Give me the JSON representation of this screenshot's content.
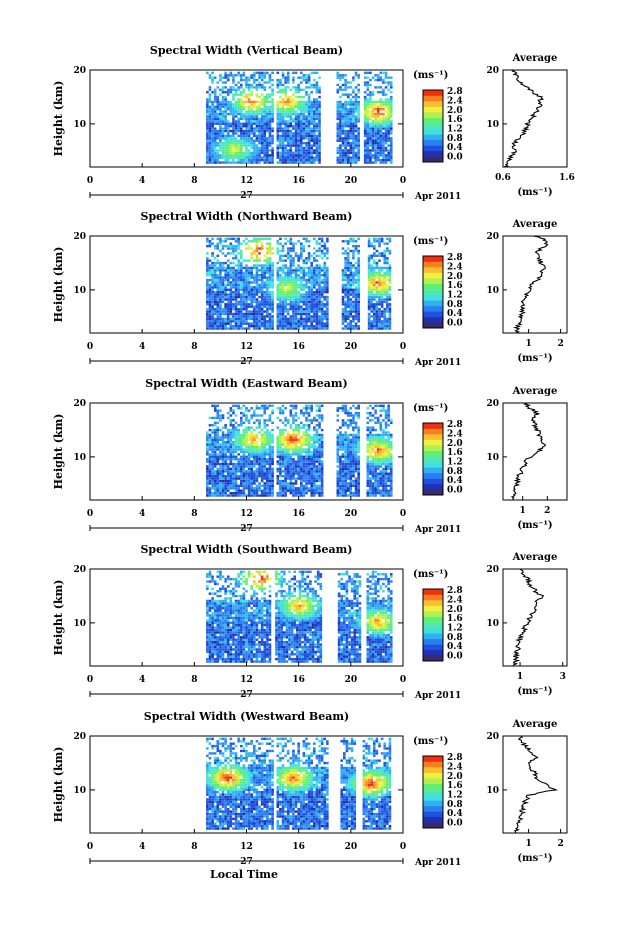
{
  "figure": {
    "shared_xlabel": "Local Time",
    "date_label": "Apr 2011",
    "day_label": "27"
  },
  "colorbar": {
    "unit": "(ms⁻¹)",
    "tick_labels": [
      "0.0",
      "0.4",
      "0.8",
      "1.2",
      "1.6",
      "2.0",
      "2.4",
      "2.8"
    ],
    "colors": [
      "#3a2a6a",
      "#2030b0",
      "#2050e0",
      "#2a7ff0",
      "#30b0f0",
      "#40e0e0",
      "#50e8b0",
      "#60f070",
      "#b0f050",
      "#f0f040",
      "#f8c030",
      "#f88020",
      "#f03010"
    ]
  },
  "chart_data": [
    {
      "type": "heatmap",
      "title": "Spectral Width (Vertical Beam)",
      "ylabel": "Height (km)",
      "xlim": [
        0,
        24
      ],
      "ylim": [
        2,
        20
      ],
      "xticks": [
        "0",
        "4",
        "8",
        "12",
        "16",
        "20",
        "0"
      ],
      "yticks": [
        "10",
        "20"
      ],
      "data_intervals_hours": [
        [
          8.9,
          13.9
        ],
        [
          14.3,
          17.5
        ],
        [
          18.9,
          20.6
        ],
        [
          21.0,
          23.0
        ]
      ],
      "gaps_hours": [
        [
          13.9,
          14.3
        ],
        [
          17.5,
          18.9
        ],
        [
          20.6,
          21.0
        ]
      ],
      "hotspots": [
        {
          "time": 12.3,
          "height": 14,
          "value": 2.6
        },
        {
          "time": 15.0,
          "height": 14,
          "value": 2.5
        },
        {
          "time": 22.0,
          "height": 12,
          "value": 2.8
        },
        {
          "time": 11.0,
          "height": 5,
          "value": 2.0
        }
      ],
      "average_profile": {
        "title": "Average",
        "xlim": [
          0.6,
          1.6
        ],
        "xticks": [
          "0.6",
          "1.6"
        ],
        "unit": "(ms⁻¹)",
        "height": [
          2,
          3,
          4,
          5,
          6,
          7,
          8,
          9,
          10,
          11,
          12,
          13,
          14,
          15,
          16,
          17,
          18,
          19,
          20
        ],
        "value": [
          0.65,
          0.7,
          0.72,
          0.78,
          0.75,
          0.82,
          0.9,
          0.95,
          0.98,
          1.05,
          1.1,
          1.15,
          1.2,
          1.18,
          1.05,
          0.95,
          0.85,
          0.8,
          0.78
        ]
      }
    },
    {
      "type": "heatmap",
      "title": "Spectral Width (Northward Beam)",
      "ylabel": "Height (km)",
      "xlim": [
        0,
        24
      ],
      "ylim": [
        2,
        20
      ],
      "xticks": [
        "0",
        "4",
        "8",
        "12",
        "16",
        "20",
        "0"
      ],
      "yticks": [
        "10",
        "20"
      ],
      "data_intervals_hours": [
        [
          8.9,
          13.9
        ],
        [
          14.3,
          18.1
        ],
        [
          19.3,
          20.5
        ],
        [
          21.3,
          23.0
        ]
      ],
      "gaps_hours": [
        [
          13.9,
          14.3
        ],
        [
          18.1,
          19.3
        ],
        [
          20.5,
          21.3
        ]
      ],
      "hotspots": [
        {
          "time": 12.9,
          "height": 17,
          "value": 2.8
        },
        {
          "time": 15.0,
          "height": 10,
          "value": 2.0
        },
        {
          "time": 22.0,
          "height": 11,
          "value": 2.6
        }
      ],
      "average_profile": {
        "title": "Average",
        "xlim": [
          0.2,
          2.2
        ],
        "xticks": [
          "1",
          "2"
        ],
        "unit": "(ms⁻¹)",
        "height": [
          2,
          3,
          4,
          5,
          6,
          7,
          8,
          9,
          10,
          11,
          12,
          13,
          14,
          15,
          16,
          17,
          18,
          19,
          20
        ],
        "value": [
          0.6,
          0.65,
          0.7,
          0.75,
          0.8,
          0.8,
          0.85,
          0.95,
          1.0,
          1.1,
          1.3,
          1.4,
          1.5,
          1.4,
          1.3,
          1.2,
          1.5,
          1.6,
          1.2
        ]
      }
    },
    {
      "type": "heatmap",
      "title": "Spectral Width (Eastward Beam)",
      "ylabel": "Height (km)",
      "xlim": [
        0,
        24
      ],
      "ylim": [
        2,
        20
      ],
      "xticks": [
        "0",
        "4",
        "8",
        "12",
        "16",
        "20",
        "0"
      ],
      "yticks": [
        "10",
        "20"
      ],
      "data_intervals_hours": [
        [
          8.9,
          13.9
        ],
        [
          14.3,
          17.8
        ],
        [
          18.9,
          20.6
        ],
        [
          21.2,
          23.0
        ]
      ],
      "gaps_hours": [
        [
          13.9,
          14.3
        ],
        [
          17.8,
          18.9
        ],
        [
          20.6,
          21.2
        ]
      ],
      "hotspots": [
        {
          "time": 15.5,
          "height": 13,
          "value": 2.8
        },
        {
          "time": 12.5,
          "height": 13,
          "value": 2.4
        },
        {
          "time": 22.0,
          "height": 11,
          "value": 2.6
        }
      ],
      "average_profile": {
        "title": "Average",
        "xlim": [
          0.2,
          2.8
        ],
        "xticks": [
          "1",
          "2"
        ],
        "unit": "(ms⁻¹)",
        "height": [
          2,
          3,
          4,
          5,
          6,
          7,
          8,
          9,
          10,
          11,
          12,
          13,
          14,
          15,
          16,
          17,
          18,
          19,
          20
        ],
        "value": [
          0.6,
          0.6,
          0.7,
          0.75,
          0.8,
          0.9,
          1.0,
          1.1,
          1.3,
          1.6,
          1.9,
          1.8,
          1.7,
          1.6,
          1.5,
          1.4,
          1.6,
          1.3,
          1.1
        ]
      }
    },
    {
      "type": "heatmap",
      "title": "Spectral Width (Southward Beam)",
      "ylabel": "Height (km)",
      "xlim": [
        0,
        24
      ],
      "ylim": [
        2,
        20
      ],
      "xticks": [
        "0",
        "4",
        "8",
        "12",
        "16",
        "20",
        "0"
      ],
      "yticks": [
        "10",
        "20"
      ],
      "data_intervals_hours": [
        [
          8.9,
          13.8
        ],
        [
          14.2,
          17.6
        ],
        [
          19.0,
          20.6
        ],
        [
          21.2,
          23.0
        ]
      ],
      "gaps_hours": [
        [
          13.8,
          14.2
        ],
        [
          17.6,
          19.0
        ],
        [
          20.6,
          21.2
        ]
      ],
      "hotspots": [
        {
          "time": 13.0,
          "height": 18,
          "value": 2.8
        },
        {
          "time": 16.0,
          "height": 13,
          "value": 2.4
        },
        {
          "time": 22.0,
          "height": 10,
          "value": 2.4
        }
      ],
      "average_profile": {
        "title": "Average",
        "xlim": [
          0.2,
          3.2
        ],
        "xticks": [
          "1",
          "3"
        ],
        "unit": "(ms⁻¹)",
        "height": [
          2,
          3,
          4,
          5,
          6,
          7,
          8,
          9,
          10,
          11,
          12,
          13,
          14,
          15,
          16,
          17,
          18,
          19,
          20
        ],
        "value": [
          0.7,
          0.8,
          0.8,
          0.9,
          0.9,
          1.0,
          1.1,
          1.2,
          1.3,
          1.5,
          1.6,
          1.7,
          1.8,
          2.0,
          1.7,
          1.5,
          1.4,
          1.2,
          1.1
        ]
      }
    },
    {
      "type": "heatmap",
      "title": "Spectral Width (Westward Beam)",
      "ylabel": "Height (km)",
      "xlim": [
        0,
        24
      ],
      "ylim": [
        2,
        20
      ],
      "xticks": [
        "0",
        "4",
        "8",
        "12",
        "16",
        "20",
        "0"
      ],
      "yticks": [
        "10",
        "20"
      ],
      "data_intervals_hours": [
        [
          8.9,
          13.9
        ],
        [
          14.3,
          18.1
        ],
        [
          19.2,
          20.3
        ],
        [
          20.9,
          23.0
        ]
      ],
      "gaps_hours": [
        [
          13.9,
          14.3
        ],
        [
          18.1,
          19.2
        ],
        [
          20.3,
          20.9
        ]
      ],
      "hotspots": [
        {
          "time": 10.5,
          "height": 12,
          "value": 2.8
        },
        {
          "time": 15.5,
          "height": 12,
          "value": 2.6
        },
        {
          "time": 21.5,
          "height": 11,
          "value": 2.8
        }
      ],
      "average_profile": {
        "title": "Average",
        "xlim": [
          0.2,
          2.2
        ],
        "xticks": [
          "1",
          "2"
        ],
        "unit": "(ms⁻¹)",
        "height": [
          2,
          3,
          4,
          5,
          6,
          7,
          8,
          9,
          10,
          11,
          12,
          13,
          14,
          15,
          16,
          17,
          18,
          19,
          20
        ],
        "value": [
          0.6,
          0.65,
          0.7,
          0.75,
          0.8,
          0.85,
          0.9,
          1.0,
          1.8,
          1.6,
          1.3,
          1.2,
          1.1,
          1.0,
          1.2,
          1.1,
          0.9,
          0.8,
          0.7
        ]
      }
    }
  ]
}
